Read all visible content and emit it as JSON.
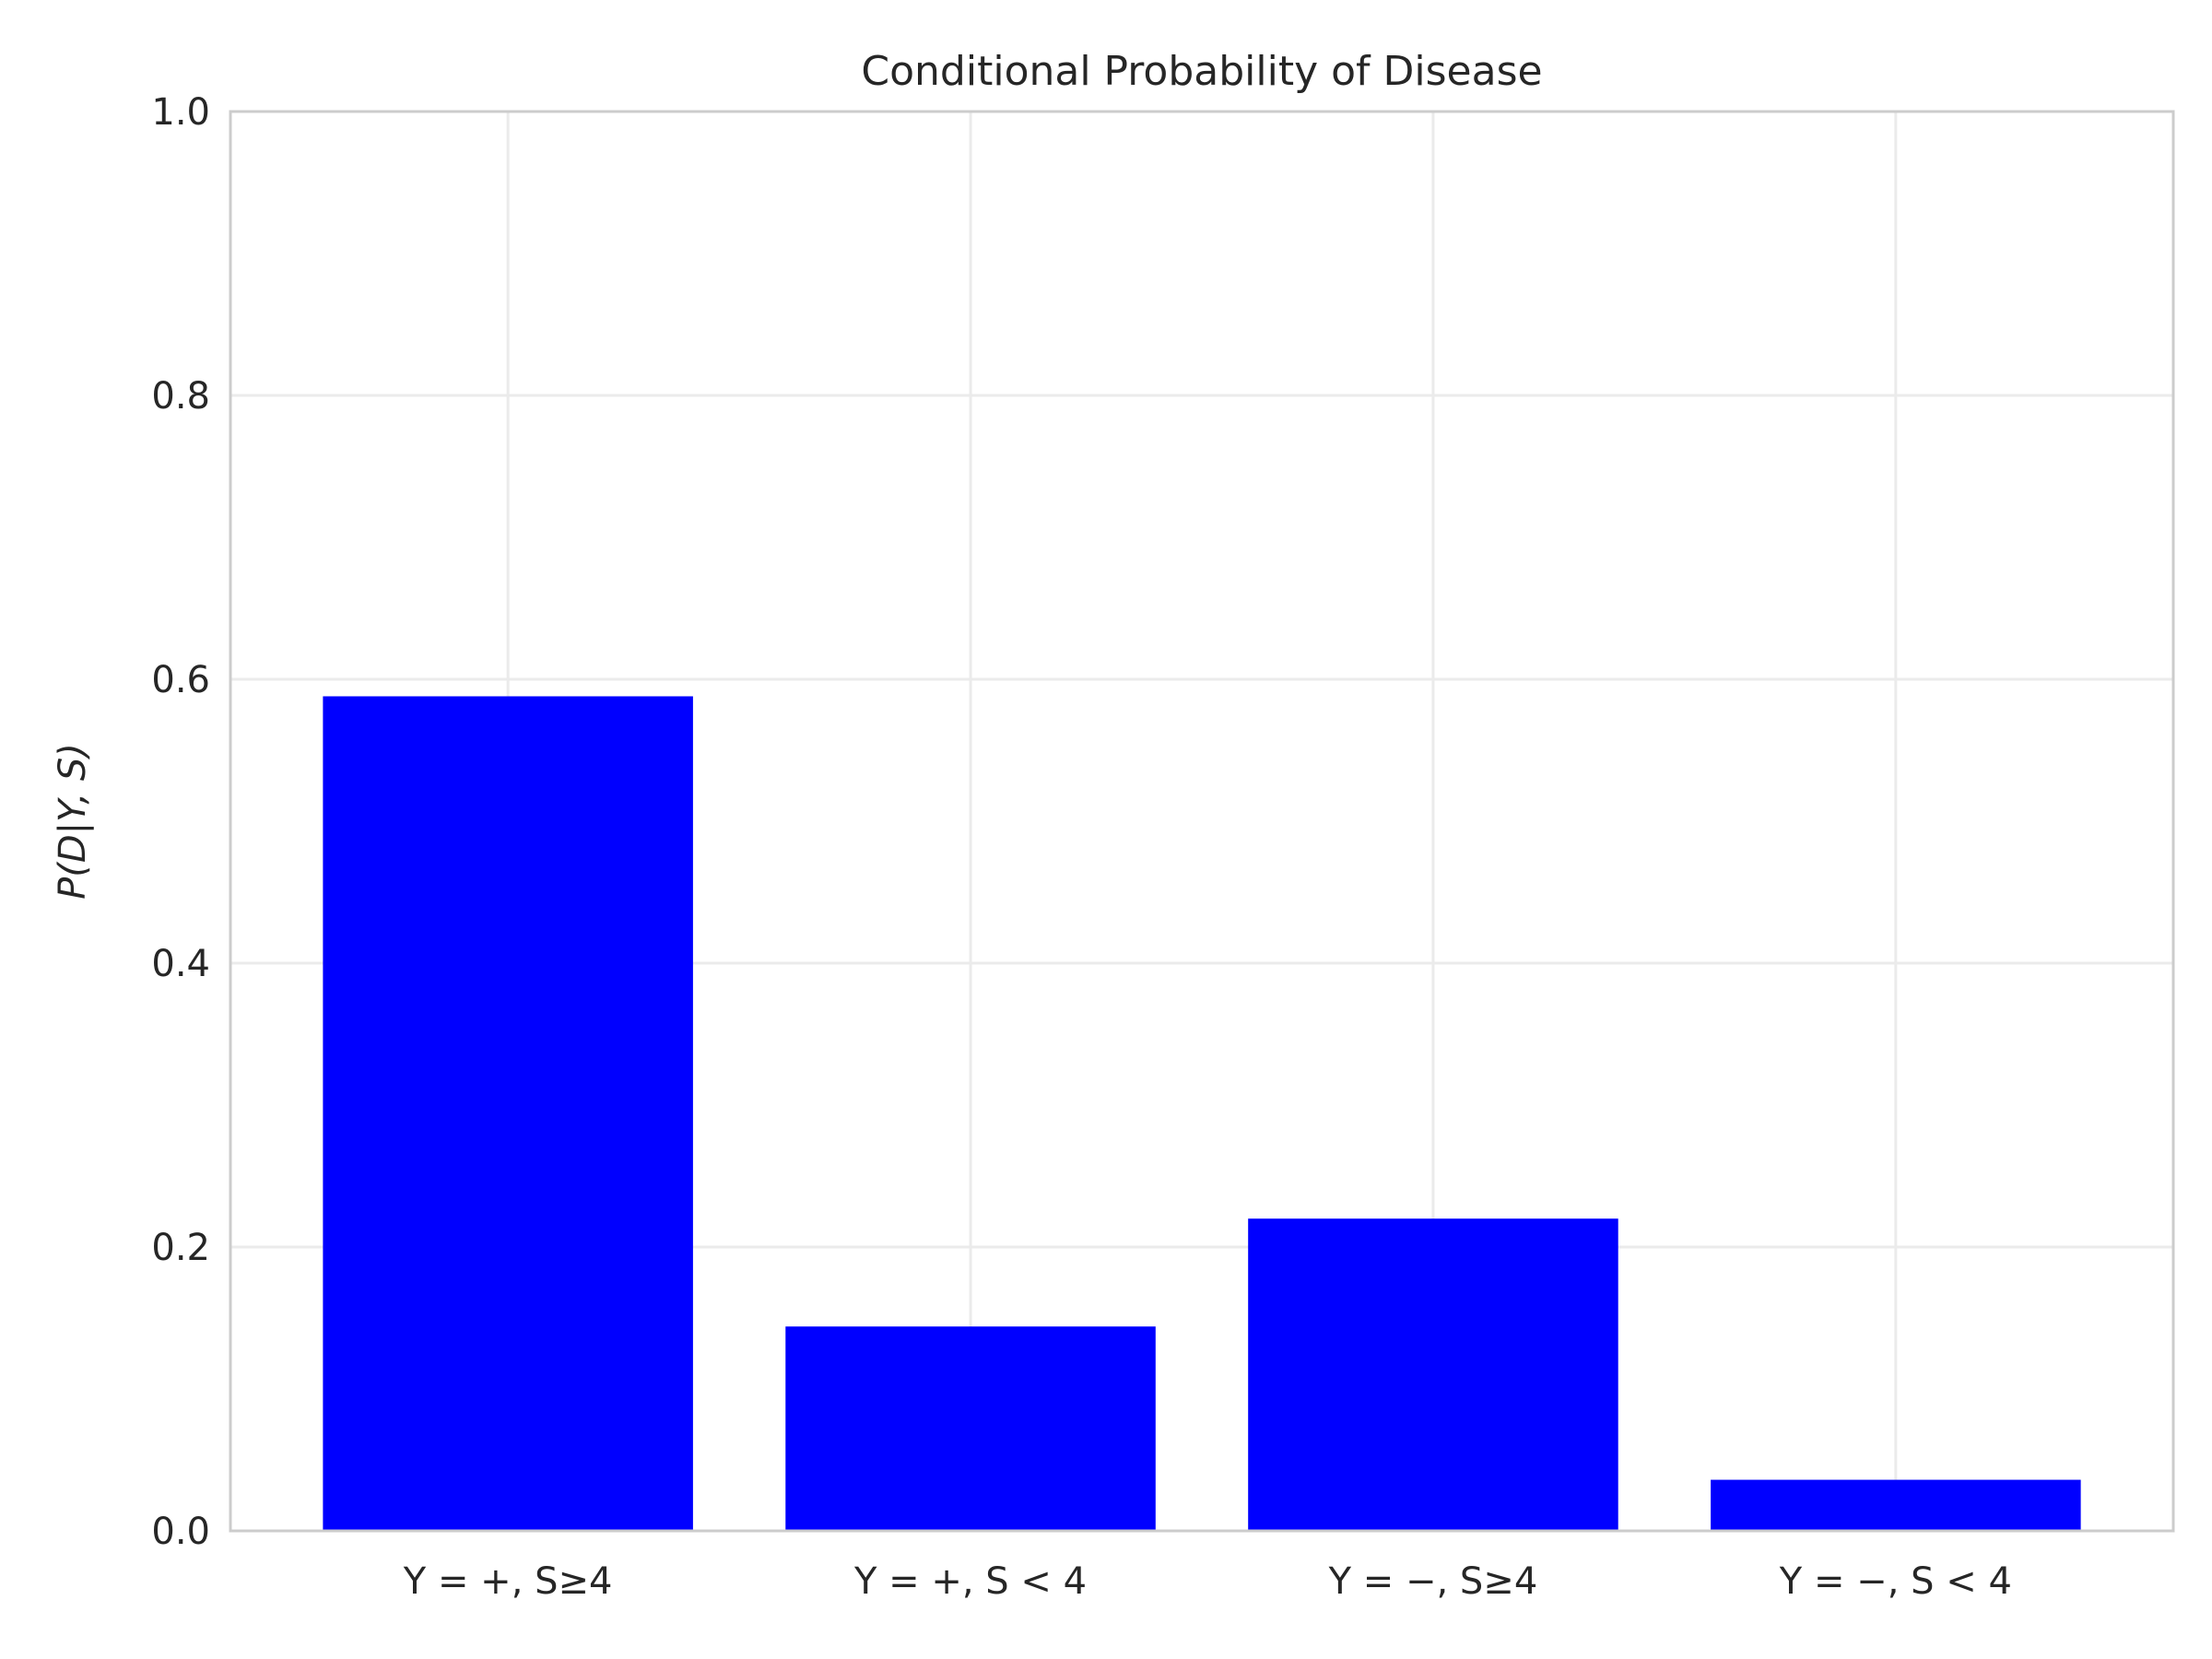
{
  "chart_data": {
    "type": "bar",
    "title": "Conditional Probability of Disease",
    "ylabel": "P(D|Y, S)",
    "xlabel": "",
    "categories": [
      "Y = +, S≥4",
      "Y = +, S < 4",
      "Y = −, S≥4",
      "Y = −, S < 4"
    ],
    "values": [
      0.588,
      0.144,
      0.22,
      0.036
    ],
    "ylim": [
      0.0,
      1.0
    ],
    "yticks": [
      0.0,
      0.2,
      0.4,
      0.6,
      0.8,
      1.0
    ],
    "ytick_labels": [
      "0.0",
      "0.2",
      "0.4",
      "0.6",
      "0.8",
      "1.0"
    ],
    "grid": true,
    "bar_color": "#0000ff",
    "grid_color": "#ebebeb",
    "spine_color": "#cccccc"
  }
}
